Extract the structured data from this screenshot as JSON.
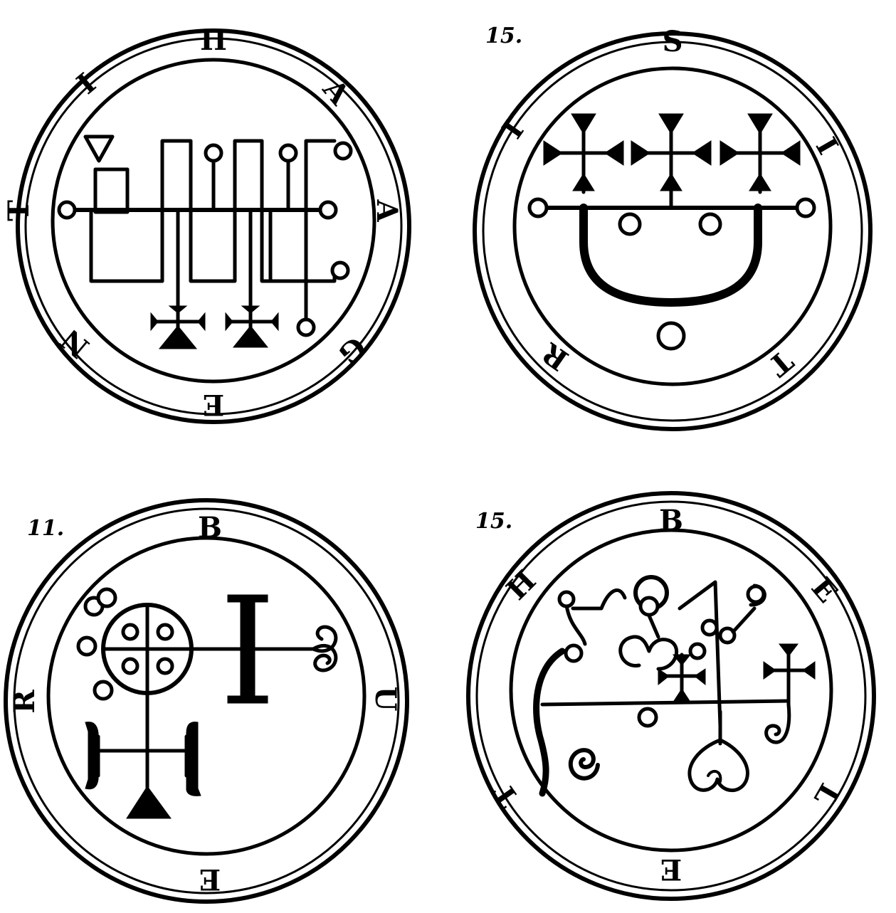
{
  "seals": [
    {
      "number": "",
      "letters": [
        "H",
        "A",
        "A",
        "G",
        "E",
        "N",
        "T",
        "I"
      ]
    },
    {
      "number": "15.",
      "letters": [
        "S",
        "I",
        "T",
        "R",
        "I"
      ]
    },
    {
      "number": "11.",
      "letters": [
        "B",
        "U",
        "E",
        "R"
      ]
    },
    {
      "number": "15.",
      "letters": [
        "B",
        "E",
        "L",
        "E",
        "T",
        "H"
      ]
    }
  ]
}
